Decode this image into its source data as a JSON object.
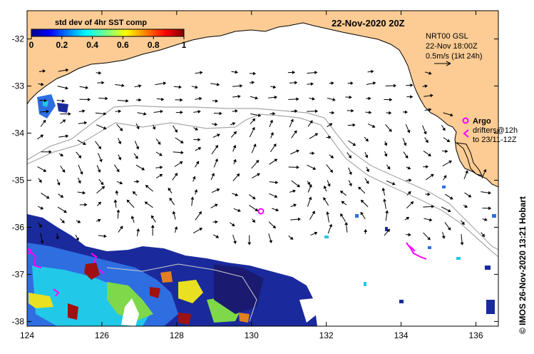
{
  "map": {
    "title": "22-Nov-2020 20Z",
    "credit": "©  IMOS 26-Nov-2020 13:21 Hobart",
    "lon_ticks": [
      "124",
      "126",
      "128",
      "130",
      "132",
      "134",
      "136"
    ],
    "lat_ticks": [
      "-32",
      "-33",
      "-34",
      "-35",
      "-36",
      "-37",
      "-38"
    ],
    "lon_range": [
      124,
      136.6
    ],
    "lat_range": [
      -38.1,
      -31.4
    ]
  },
  "colorbar": {
    "title": "std dev of 4hr SST comp",
    "ticks": [
      "0",
      "0.2",
      "0.4",
      "0.6",
      "0.8",
      "1"
    ]
  },
  "info": {
    "line1": "NRT00 GSL",
    "line2": "22-Nov 18:00Z",
    "line3": "0.5m/s (1kt 24h)"
  },
  "argo": {
    "title": "Argo",
    "line1": "drifters@12h",
    "line2": "to 23/11-12Z"
  },
  "colors": {
    "land": "#fccc94",
    "argo": "#ff00ff",
    "contour": "#a8a8a8",
    "sst_low": "#1a1a9c",
    "sst_high": "#a01010"
  }
}
